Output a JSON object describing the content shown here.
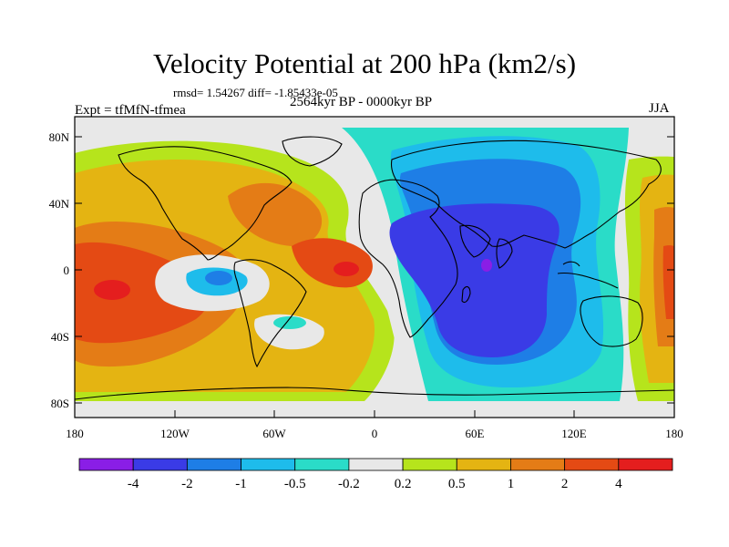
{
  "title": "Velocity Potential at 200 hPa (km2/s)",
  "stats": "rmsd= 1.54267 diff= -1.85433e-05",
  "experiment": "Expt = tfMfN-tfmea",
  "period": "2564kyr BP - 0000kyr BP",
  "season": "JJA",
  "lat_labels": [
    "80N",
    "40N",
    "0",
    "40S",
    "80S"
  ],
  "lon_labels": [
    "180",
    "120W",
    "60W",
    "0",
    "60E",
    "120E",
    "180"
  ],
  "colorbar": {
    "labels": [
      "-4",
      "-2",
      "-1",
      "-0.5",
      "-0.2",
      "0.2",
      "0.5",
      "1",
      "2",
      "4"
    ],
    "colors": [
      "#8a1ee6",
      "#3a3be6",
      "#1e7ee6",
      "#1ebceb",
      "#2adcc8",
      "#e8e8e8",
      "#b6e41c",
      "#e4b412",
      "#e47c16",
      "#e44a14",
      "#e41e1e"
    ]
  },
  "colors": {
    "background": "#e8e8e8",
    "land_outline": "#000000"
  }
}
